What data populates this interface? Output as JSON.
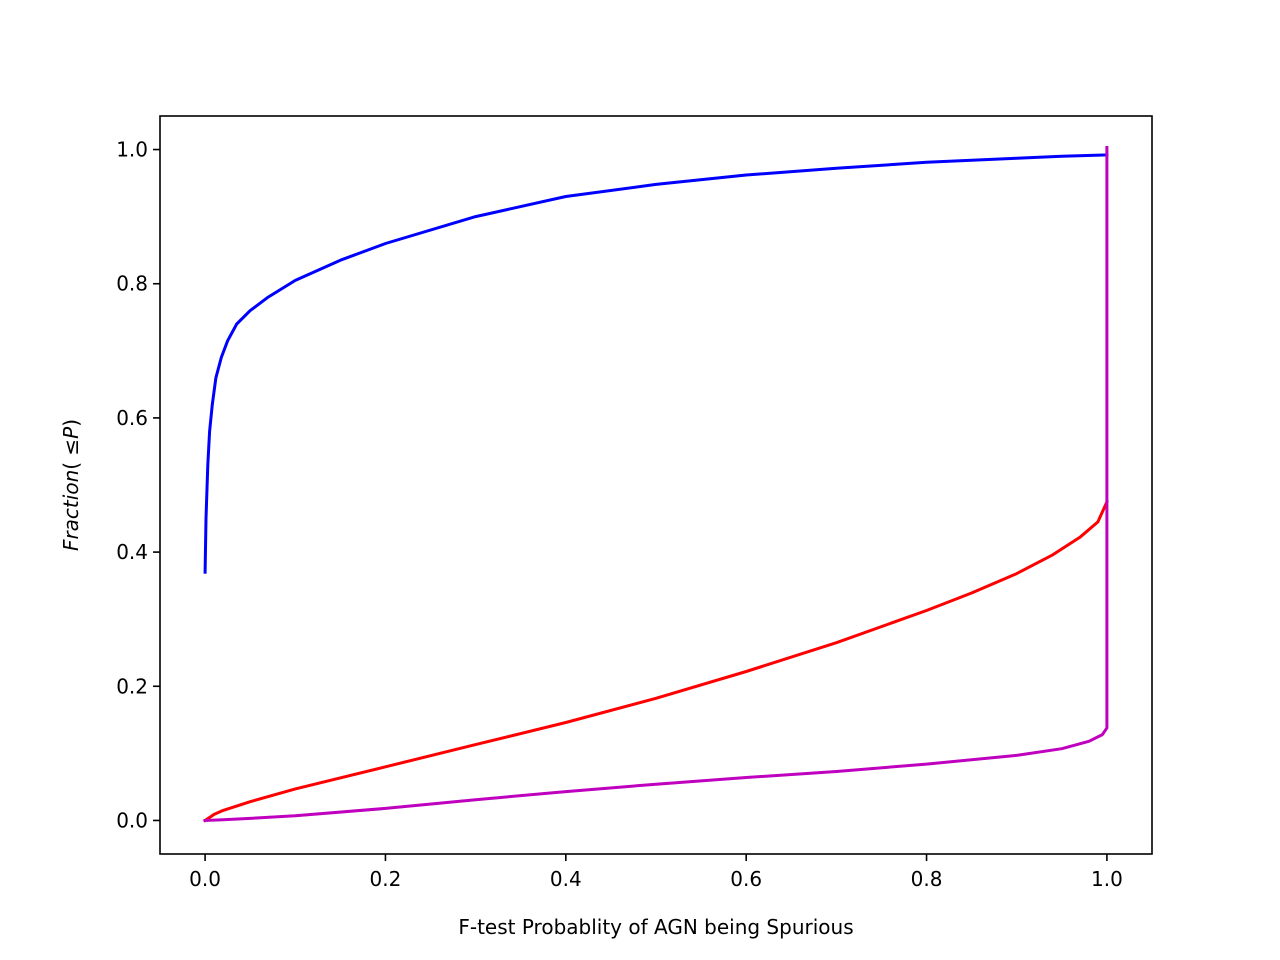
{
  "chart_data": {
    "type": "line",
    "title": "",
    "xlabel": "F-test Probablity of AGN being Spurious",
    "ylabel": "Fraction( ≤ P)",
    "ylabel_parts": {
      "text": "Fraction",
      "open": "( ",
      "sym": "≤",
      "var": "P",
      "close": ")"
    },
    "xlim": [
      -0.05,
      1.05
    ],
    "ylim": [
      -0.05,
      1.05
    ],
    "xticks": [
      0.0,
      0.2,
      0.4,
      0.6,
      0.8,
      1.0
    ],
    "xtick_labels": [
      "0.0",
      "0.2",
      "0.4",
      "0.6",
      "0.8",
      "1.0"
    ],
    "yticks": [
      0.0,
      0.2,
      0.4,
      0.6,
      0.8,
      1.0
    ],
    "ytick_labels": [
      "0.0",
      "0.2",
      "0.4",
      "0.6",
      "0.8",
      "1.0"
    ],
    "grid": false,
    "series": [
      {
        "color": "#0000ff",
        "x": [
          0.0,
          0.001,
          0.003,
          0.005,
          0.008,
          0.012,
          0.018,
          0.025,
          0.035,
          0.05,
          0.07,
          0.1,
          0.15,
          0.2,
          0.3,
          0.4,
          0.5,
          0.6,
          0.7,
          0.8,
          0.9,
          0.95,
          1.0
        ],
        "y": [
          0.37,
          0.45,
          0.53,
          0.58,
          0.62,
          0.66,
          0.69,
          0.715,
          0.74,
          0.76,
          0.78,
          0.805,
          0.835,
          0.86,
          0.9,
          0.93,
          0.948,
          0.962,
          0.972,
          0.981,
          0.987,
          0.99,
          0.992
        ]
      },
      {
        "color": "#ff0000",
        "x": [
          0.0,
          0.01,
          0.02,
          0.05,
          0.1,
          0.2,
          0.3,
          0.4,
          0.5,
          0.6,
          0.7,
          0.8,
          0.85,
          0.9,
          0.94,
          0.97,
          0.99,
          1.0
        ],
        "y": [
          0.0,
          0.009,
          0.015,
          0.028,
          0.047,
          0.08,
          0.113,
          0.146,
          0.182,
          0.222,
          0.265,
          0.313,
          0.339,
          0.368,
          0.396,
          0.422,
          0.445,
          0.475
        ]
      },
      {
        "color": "#bf00bf",
        "x": [
          0.0,
          0.02,
          0.05,
          0.1,
          0.2,
          0.3,
          0.4,
          0.5,
          0.6,
          0.7,
          0.8,
          0.9,
          0.95,
          0.98,
          0.995,
          1.0,
          1.0,
          1.0
        ],
        "y": [
          0.0,
          0.001,
          0.003,
          0.007,
          0.018,
          0.031,
          0.043,
          0.054,
          0.064,
          0.073,
          0.084,
          0.097,
          0.107,
          0.118,
          0.128,
          0.138,
          0.6,
          1.003
        ]
      }
    ]
  }
}
